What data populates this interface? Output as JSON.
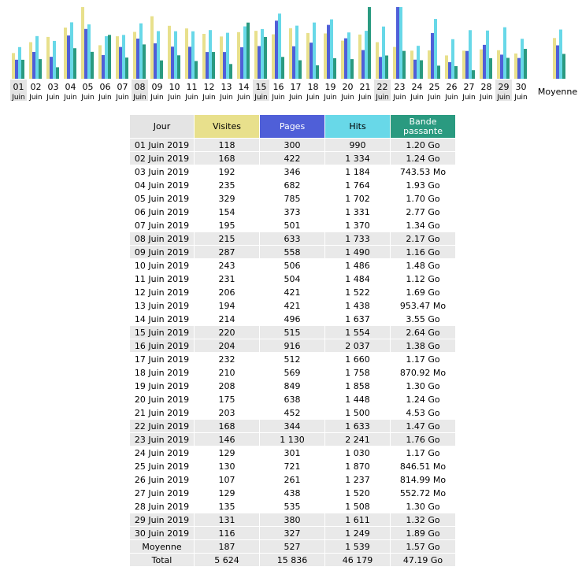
{
  "colors": {
    "visites": "#e8e08c",
    "pages": "#4f5fd8",
    "hits": "#68d8e8",
    "bandwidth": "#2a9a80",
    "header_day": "#e4e4e4",
    "shade_row": "#e9e9e9"
  },
  "chart_data": {
    "type": "bar",
    "categories_day": [
      "01",
      "02",
      "03",
      "04",
      "05",
      "06",
      "07",
      "08",
      "09",
      "10",
      "11",
      "12",
      "13",
      "14",
      "15",
      "16",
      "17",
      "18",
      "19",
      "20",
      "21",
      "22",
      "23",
      "24",
      "25",
      "26",
      "27",
      "28",
      "29",
      "30"
    ],
    "categories_month": "Juin",
    "weekend_days": [
      "01",
      "08",
      "15",
      "22",
      "29"
    ],
    "average_label": "Moyenne",
    "series": [
      {
        "key": "visites",
        "values": [
          118,
          168,
          192,
          235,
          329,
          154,
          195,
          215,
          287,
          243,
          231,
          206,
          194,
          214,
          220,
          204,
          232,
          210,
          208,
          175,
          203,
          168,
          146,
          129,
          130,
          107,
          129,
          135,
          131,
          116
        ],
        "average": 187
      },
      {
        "key": "pages",
        "values": [
          300,
          422,
          346,
          682,
          785,
          373,
          501,
          633,
          558,
          506,
          504,
          421,
          421,
          496,
          515,
          916,
          512,
          569,
          849,
          638,
          452,
          344,
          1130,
          301,
          721,
          261,
          438,
          535,
          380,
          327
        ],
        "average": 527
      },
      {
        "key": "hits",
        "values": [
          990,
          1334,
          1184,
          1764,
          1702,
          1331,
          1370,
          1733,
          1490,
          1486,
          1484,
          1522,
          1438,
          1637,
          1554,
          2037,
          1660,
          1758,
          1858,
          1448,
          1500,
          1633,
          2241,
          1030,
          1870,
          1237,
          1520,
          1508,
          1611,
          1249
        ],
        "average": 1539
      },
      {
        "key": "bandwidth",
        "unit": "Go",
        "values": [
          1.2,
          1.24,
          0.7261,
          1.93,
          1.7,
          2.77,
          1.34,
          2.17,
          1.16,
          1.48,
          1.12,
          1.69,
          0.9311,
          3.55,
          2.64,
          1.38,
          1.17,
          0.8505,
          1.3,
          1.24,
          4.53,
          1.47,
          1.76,
          1.17,
          0.8267,
          0.7959,
          0.5398,
          1.3,
          1.32,
          1.89
        ],
        "average": 1.57
      }
    ]
  },
  "table": {
    "headers": {
      "day": "Jour",
      "visits": "Visites",
      "pages": "Pages",
      "hits": "Hits",
      "bandwidth_line1": "Bande",
      "bandwidth_line2": "passante"
    },
    "rows": [
      {
        "day": "01 Juin 2019",
        "visits": "118",
        "pages": "300",
        "hits": "990",
        "bandwidth": "1.20 Go",
        "shade": true
      },
      {
        "day": "02 Juin 2019",
        "visits": "168",
        "pages": "422",
        "hits": "1 334",
        "bandwidth": "1.24 Go",
        "shade": true
      },
      {
        "day": "03 Juin 2019",
        "visits": "192",
        "pages": "346",
        "hits": "1 184",
        "bandwidth": "743.53 Mo",
        "shade": false
      },
      {
        "day": "04 Juin 2019",
        "visits": "235",
        "pages": "682",
        "hits": "1 764",
        "bandwidth": "1.93 Go",
        "shade": false
      },
      {
        "day": "05 Juin 2019",
        "visits": "329",
        "pages": "785",
        "hits": "1 702",
        "bandwidth": "1.70 Go",
        "shade": false
      },
      {
        "day": "06 Juin 2019",
        "visits": "154",
        "pages": "373",
        "hits": "1 331",
        "bandwidth": "2.77 Go",
        "shade": false
      },
      {
        "day": "07 Juin 2019",
        "visits": "195",
        "pages": "501",
        "hits": "1 370",
        "bandwidth": "1.34 Go",
        "shade": false
      },
      {
        "day": "08 Juin 2019",
        "visits": "215",
        "pages": "633",
        "hits": "1 733",
        "bandwidth": "2.17 Go",
        "shade": true
      },
      {
        "day": "09 Juin 2019",
        "visits": "287",
        "pages": "558",
        "hits": "1 490",
        "bandwidth": "1.16 Go",
        "shade": true
      },
      {
        "day": "10 Juin 2019",
        "visits": "243",
        "pages": "506",
        "hits": "1 486",
        "bandwidth": "1.48 Go",
        "shade": false
      },
      {
        "day": "11 Juin 2019",
        "visits": "231",
        "pages": "504",
        "hits": "1 484",
        "bandwidth": "1.12 Go",
        "shade": false
      },
      {
        "day": "12 Juin 2019",
        "visits": "206",
        "pages": "421",
        "hits": "1 522",
        "bandwidth": "1.69 Go",
        "shade": false
      },
      {
        "day": "13 Juin 2019",
        "visits": "194",
        "pages": "421",
        "hits": "1 438",
        "bandwidth": "953.47 Mo",
        "shade": false
      },
      {
        "day": "14 Juin 2019",
        "visits": "214",
        "pages": "496",
        "hits": "1 637",
        "bandwidth": "3.55 Go",
        "shade": false
      },
      {
        "day": "15 Juin 2019",
        "visits": "220",
        "pages": "515",
        "hits": "1 554",
        "bandwidth": "2.64 Go",
        "shade": true
      },
      {
        "day": "16 Juin 2019",
        "visits": "204",
        "pages": "916",
        "hits": "2 037",
        "bandwidth": "1.38 Go",
        "shade": true
      },
      {
        "day": "17 Juin 2019",
        "visits": "232",
        "pages": "512",
        "hits": "1 660",
        "bandwidth": "1.17 Go",
        "shade": false
      },
      {
        "day": "18 Juin 2019",
        "visits": "210",
        "pages": "569",
        "hits": "1 758",
        "bandwidth": "870.92 Mo",
        "shade": false
      },
      {
        "day": "19 Juin 2019",
        "visits": "208",
        "pages": "849",
        "hits": "1 858",
        "bandwidth": "1.30 Go",
        "shade": false
      },
      {
        "day": "20 Juin 2019",
        "visits": "175",
        "pages": "638",
        "hits": "1 448",
        "bandwidth": "1.24 Go",
        "shade": false
      },
      {
        "day": "21 Juin 2019",
        "visits": "203",
        "pages": "452",
        "hits": "1 500",
        "bandwidth": "4.53 Go",
        "shade": false
      },
      {
        "day": "22 Juin 2019",
        "visits": "168",
        "pages": "344",
        "hits": "1 633",
        "bandwidth": "1.47 Go",
        "shade": true
      },
      {
        "day": "23 Juin 2019",
        "visits": "146",
        "pages": "1 130",
        "hits": "2 241",
        "bandwidth": "1.76 Go",
        "shade": true
      },
      {
        "day": "24 Juin 2019",
        "visits": "129",
        "pages": "301",
        "hits": "1 030",
        "bandwidth": "1.17 Go",
        "shade": false
      },
      {
        "day": "25 Juin 2019",
        "visits": "130",
        "pages": "721",
        "hits": "1 870",
        "bandwidth": "846.51 Mo",
        "shade": false
      },
      {
        "day": "26 Juin 2019",
        "visits": "107",
        "pages": "261",
        "hits": "1 237",
        "bandwidth": "814.99 Mo",
        "shade": false
      },
      {
        "day": "27 Juin 2019",
        "visits": "129",
        "pages": "438",
        "hits": "1 520",
        "bandwidth": "552.72 Mo",
        "shade": false
      },
      {
        "day": "28 Juin 2019",
        "visits": "135",
        "pages": "535",
        "hits": "1 508",
        "bandwidth": "1.30 Go",
        "shade": false
      },
      {
        "day": "29 Juin 2019",
        "visits": "131",
        "pages": "380",
        "hits": "1 611",
        "bandwidth": "1.32 Go",
        "shade": true
      },
      {
        "day": "30 Juin 2019",
        "visits": "116",
        "pages": "327",
        "hits": "1 249",
        "bandwidth": "1.89 Go",
        "shade": true
      }
    ],
    "average": {
      "day": "Moyenne",
      "visits": "187",
      "pages": "527",
      "hits": "1 539",
      "bandwidth": "1.57 Go"
    },
    "total": {
      "day": "Total",
      "visits": "5 624",
      "pages": "15 836",
      "hits": "46 179",
      "bandwidth": "47.19 Go"
    }
  }
}
